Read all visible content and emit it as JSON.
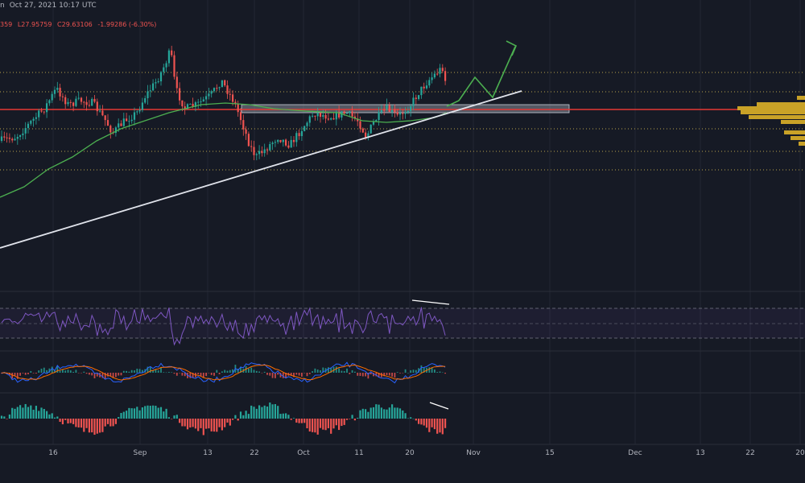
{
  "header": {
    "symbol_fragment": "n",
    "date_text": "Oct 27, 2021 10:17 UTC"
  },
  "ohlc": {
    "open_fragment": "359",
    "low": "L27.95759",
    "close": "C29.63106",
    "change": "-1.99286 (-6.30%)"
  },
  "colors": {
    "background": "#161a25",
    "grid": "#222633",
    "up": "#26a69a",
    "down": "#ef5350",
    "ma": "#4caf50",
    "trendline": "#e0e3eb",
    "projection": "#4caf50",
    "resistance": "#e53935",
    "levels": "#b8a14a",
    "zone": "#8a8e99",
    "volume_profile": "#c9a227",
    "rsi": "#7e57c2",
    "macd": "#2962ff",
    "signal": "#ff6d00"
  },
  "x_axis": {
    "labels": [
      "16",
      "Sep",
      "13",
      "22",
      "Oct",
      "11",
      "20",
      "Nov",
      "15",
      "Dec",
      "13",
      "22",
      "20"
    ]
  },
  "chart_data": {
    "type": "candlestick",
    "panes": [
      "price",
      "rsi",
      "macd",
      "histogram"
    ],
    "annotations": [
      {
        "kind": "horizontal_line",
        "label": "resistance",
        "color": "red"
      },
      {
        "kind": "shaded_zone",
        "label": "support/resistance zone"
      },
      {
        "kind": "dotted_levels",
        "count": 5
      },
      {
        "kind": "ascending_trendline",
        "color": "white"
      },
      {
        "kind": "moving_average",
        "color": "green"
      },
      {
        "kind": "projected_path",
        "color": "green",
        "direction": "up"
      },
      {
        "kind": "volume_profile",
        "side": "right"
      },
      {
        "kind": "divergence_lines",
        "panes": [
          "rsi",
          "histogram"
        ]
      }
    ]
  }
}
